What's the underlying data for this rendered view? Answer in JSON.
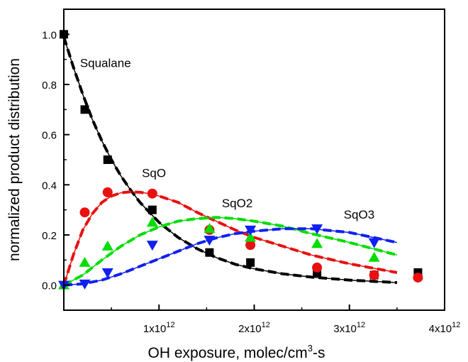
{
  "chart_data": {
    "type": "scatter",
    "xlabel": "OH exposure, molec/cm",
    "xlabel_sup": "3",
    "xlabel_tail": "-s",
    "ylabel": "normalized product distribution",
    "xlim": [
      0,
      4000000000000.0
    ],
    "ylim": [
      -0.1,
      1.1
    ],
    "x_ticks": [
      {
        "value": 1000000000000.0,
        "mantissa": "1x10",
        "exponent": "12"
      },
      {
        "value": 2000000000000.0,
        "mantissa": "2x10",
        "exponent": "12"
      },
      {
        "value": 3000000000000.0,
        "mantissa": "3x10",
        "exponent": "12"
      },
      {
        "value": 4000000000000.0,
        "mantissa": "4x10",
        "exponent": "12"
      }
    ],
    "y_ticks": [
      {
        "value": 0.0,
        "label": "0.0"
      },
      {
        "value": 0.2,
        "label": "0.2"
      },
      {
        "value": 0.4,
        "label": "0.4"
      },
      {
        "value": 0.6,
        "label": "0.6"
      },
      {
        "value": 0.8,
        "label": "0.8"
      },
      {
        "value": 1.0,
        "label": "1.0"
      }
    ],
    "grid": false,
    "series": [
      {
        "name": "Squalane",
        "marker": "square",
        "color": "#000000",
        "label_at": [
          170000000000.0,
          0.87
        ],
        "points": [
          [
            0,
            1.0
          ],
          [
            220000000000.0,
            0.7
          ],
          [
            460000000000.0,
            0.5
          ],
          [
            930000000000.0,
            0.3
          ],
          [
            1530000000000.0,
            0.13
          ],
          [
            1960000000000.0,
            0.09
          ],
          [
            2660000000000.0,
            0.05
          ],
          [
            3260000000000.0,
            0.04
          ],
          [
            3720000000000.0,
            0.05
          ]
        ],
        "fit": [
          [
            0,
            0.99
          ],
          [
            100000000000.0,
            0.87
          ],
          [
            200000000000.0,
            0.76
          ],
          [
            300000000000.0,
            0.66
          ],
          [
            400000000000.0,
            0.575
          ],
          [
            500000000000.0,
            0.5
          ],
          [
            600000000000.0,
            0.435
          ],
          [
            700000000000.0,
            0.38
          ],
          [
            800000000000.0,
            0.33
          ],
          [
            900000000000.0,
            0.29
          ],
          [
            1000000000000.0,
            0.25
          ],
          [
            1200000000000.0,
            0.19
          ],
          [
            1400000000000.0,
            0.145
          ],
          [
            1600000000000.0,
            0.11
          ],
          [
            1800000000000.0,
            0.083
          ],
          [
            2000000000000.0,
            0.065
          ],
          [
            2300000000000.0,
            0.045
          ],
          [
            2600000000000.0,
            0.032
          ],
          [
            3000000000000.0,
            0.02
          ],
          [
            3500000000000.0,
            0.01
          ]
        ]
      },
      {
        "name": "SqO",
        "marker": "circle",
        "color": "#e81010",
        "label_at": [
          820000000000.0,
          0.43
        ],
        "points": [
          [
            220000000000.0,
            0.29
          ],
          [
            460000000000.0,
            0.37
          ],
          [
            930000000000.0,
            0.365
          ],
          [
            1530000000000.0,
            0.22
          ],
          [
            1960000000000.0,
            0.16
          ],
          [
            2660000000000.0,
            0.07
          ],
          [
            3260000000000.0,
            0.04
          ],
          [
            3720000000000.0,
            0.03
          ]
        ],
        "fit": [
          [
            0,
            0.0
          ],
          [
            50000000000.0,
            0.06
          ],
          [
            100000000000.0,
            0.12
          ],
          [
            200000000000.0,
            0.22
          ],
          [
            300000000000.0,
            0.285
          ],
          [
            400000000000.0,
            0.33
          ],
          [
            500000000000.0,
            0.355
          ],
          [
            600000000000.0,
            0.368
          ],
          [
            700000000000.0,
            0.372
          ],
          [
            800000000000.0,
            0.37
          ],
          [
            900000000000.0,
            0.365
          ],
          [
            1000000000000.0,
            0.355
          ],
          [
            1200000000000.0,
            0.33
          ],
          [
            1400000000000.0,
            0.29
          ],
          [
            1600000000000.0,
            0.255
          ],
          [
            1800000000000.0,
            0.22
          ],
          [
            2000000000000.0,
            0.19
          ],
          [
            2300000000000.0,
            0.155
          ],
          [
            2600000000000.0,
            0.12
          ],
          [
            3000000000000.0,
            0.085
          ],
          [
            3500000000000.0,
            0.05
          ]
        ]
      },
      {
        "name": "SqO2",
        "marker": "triangle-up",
        "color": "#00dd00",
        "label_at": [
          1660000000000.0,
          0.31
        ],
        "points": [
          [
            0.0,
            0.0
          ],
          [
            220000000000.0,
            0.09
          ],
          [
            460000000000.0,
            0.155
          ],
          [
            930000000000.0,
            0.25
          ],
          [
            1530000000000.0,
            0.225
          ],
          [
            1960000000000.0,
            0.19
          ],
          [
            2660000000000.0,
            0.165
          ],
          [
            3260000000000.0,
            0.11
          ]
        ],
        "fit": [
          [
            0,
            0.0
          ],
          [
            200000000000.0,
            0.04
          ],
          [
            400000000000.0,
            0.1
          ],
          [
            600000000000.0,
            0.155
          ],
          [
            800000000000.0,
            0.2
          ],
          [
            1000000000000.0,
            0.232
          ],
          [
            1200000000000.0,
            0.255
          ],
          [
            1400000000000.0,
            0.265
          ],
          [
            1600000000000.0,
            0.27
          ],
          [
            1800000000000.0,
            0.265
          ],
          [
            2000000000000.0,
            0.255
          ],
          [
            2300000000000.0,
            0.235
          ],
          [
            2600000000000.0,
            0.205
          ],
          [
            3000000000000.0,
            0.17
          ],
          [
            3500000000000.0,
            0.12
          ]
        ]
      },
      {
        "name": "SqO3",
        "marker": "triangle-down",
        "color": "#1020f0",
        "label_at": [
          2940000000000.0,
          0.265
        ],
        "points": [
          [
            0.0,
            0.0
          ],
          [
            220000000000.0,
            0.005
          ],
          [
            460000000000.0,
            0.05
          ],
          [
            930000000000.0,
            0.16
          ],
          [
            1530000000000.0,
            0.18
          ],
          [
            1960000000000.0,
            0.22
          ],
          [
            2660000000000.0,
            0.225
          ],
          [
            3260000000000.0,
            0.17
          ]
        ],
        "fit": [
          [
            0,
            0.0
          ],
          [
            200000000000.0,
            0.005
          ],
          [
            400000000000.0,
            0.02
          ],
          [
            600000000000.0,
            0.045
          ],
          [
            800000000000.0,
            0.075
          ],
          [
            1000000000000.0,
            0.105
          ],
          [
            1200000000000.0,
            0.135
          ],
          [
            1400000000000.0,
            0.165
          ],
          [
            1600000000000.0,
            0.188
          ],
          [
            1800000000000.0,
            0.205
          ],
          [
            2000000000000.0,
            0.215
          ],
          [
            2300000000000.0,
            0.225
          ],
          [
            2600000000000.0,
            0.225
          ],
          [
            3000000000000.0,
            0.21
          ],
          [
            3500000000000.0,
            0.17
          ]
        ]
      }
    ]
  }
}
